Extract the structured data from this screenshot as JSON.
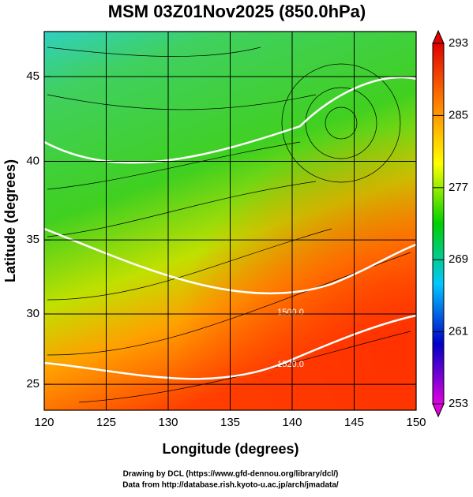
{
  "chart_data": {
    "type": "map",
    "title": "MSM 03Z01Nov2025 (850.0hPa)",
    "xlabel": "Longitude (degrees)",
    "ylabel": "Latitude  (degrees)",
    "xlim": [
      120,
      150
    ],
    "xticks": [
      120,
      125,
      130,
      135,
      140,
      145,
      150
    ],
    "ylim": [
      23.1,
      47.5
    ],
    "yticks": [
      25,
      30,
      35,
      40,
      45
    ],
    "projection": "mercator",
    "grid": true,
    "contour_labels": [
      "1500.0",
      "1520.0"
    ],
    "colorbar": {
      "lim": [
        253,
        293
      ],
      "ticks": [
        253,
        261,
        269,
        277,
        285,
        293
      ],
      "colors": [
        "#e000e0",
        "#0000c8",
        "#00c8ff",
        "#00d000",
        "#ffff00",
        "#ff8000",
        "#e00000"
      ]
    }
  },
  "credits": [
    "Drawing by DCL (https://www.gfd-dennou.org/library/dcl/)",
    "Data from http://database.rish.kyoto-u.ac.jp/arch/jmadata/"
  ]
}
